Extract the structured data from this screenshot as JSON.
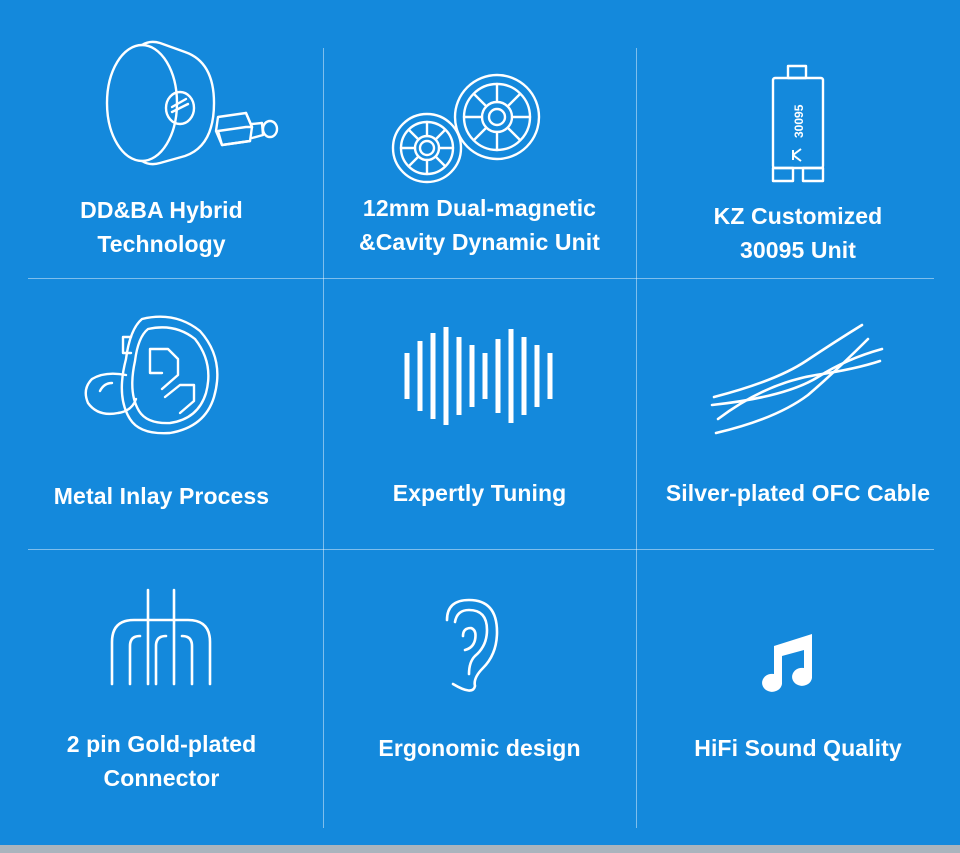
{
  "features": [
    {
      "icon": "hybrid-driver-icon",
      "lines": [
        "DD&BA Hybrid",
        "Technology"
      ]
    },
    {
      "icon": "dual-magnetic-driver-icon",
      "lines": [
        "12mm Dual-magnetic",
        "&Cavity Dynamic Unit"
      ]
    },
    {
      "icon": "balanced-armature-unit-icon",
      "lines": [
        "KZ Customized",
        "30095 Unit"
      ],
      "unit_marking": "30095"
    },
    {
      "icon": "earphone-icon",
      "lines": [
        "Metal Inlay Process"
      ]
    },
    {
      "icon": "sound-wave-icon",
      "lines": [
        "Expertly Tuning"
      ]
    },
    {
      "icon": "twisted-cable-icon",
      "lines": [
        "Silver-plated OFC Cable"
      ]
    },
    {
      "icon": "two-pin-connector-icon",
      "lines": [
        "2 pin Gold-plated",
        "Connector"
      ]
    },
    {
      "icon": "ear-icon",
      "lines": [
        "Ergonomic design"
      ]
    },
    {
      "icon": "music-note-icon",
      "lines": [
        "HiFi Sound Quality"
      ]
    }
  ],
  "colors": {
    "background": "#1489dc",
    "foreground": "#ffffff",
    "divider": "#7fbdea"
  }
}
